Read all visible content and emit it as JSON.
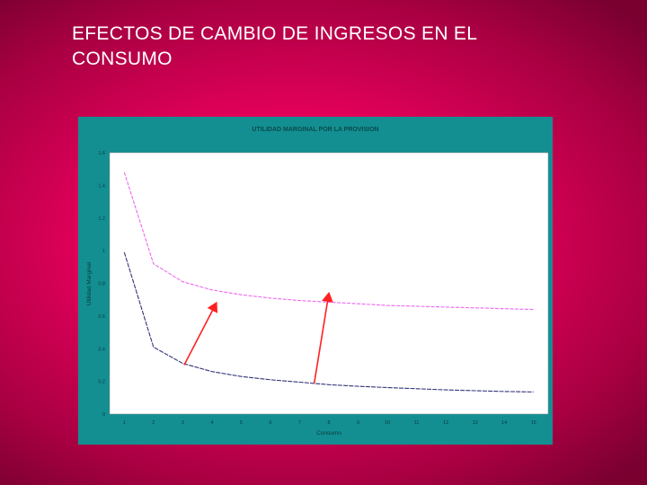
{
  "slide": {
    "title_line1": "EFECTOS DE CAMBIO DE INGRESOS EN EL",
    "title_line2": "CONSUMO"
  },
  "colors": {
    "panel": "#138f92",
    "plot_bg": "#ffffff",
    "series_upper": "#ee66ee",
    "series_lower": "#33337a",
    "arrows": "#ff2020"
  },
  "chart_data": {
    "type": "line",
    "title": "UTILIDAD MARGINAL POR LA PROVISION",
    "xlabel": "Consumo",
    "ylabel": "Utilidad Marginal",
    "ylim": [
      0,
      1.6
    ],
    "xlim": [
      0.5,
      15.5
    ],
    "y_ticks": [
      0,
      0.2,
      0.4,
      0.6,
      0.8,
      1,
      1.2,
      1.4,
      1.6
    ],
    "y_tick_labels": [
      "0",
      "0.2",
      "0.4",
      "0.6",
      "0.8",
      "1",
      "1.2",
      "1.4",
      "1.6"
    ],
    "x": [
      1,
      2,
      3,
      4,
      5,
      6,
      7,
      8,
      9,
      10,
      11,
      12,
      13,
      14,
      15
    ],
    "x_tick_labels": [
      "1",
      "2",
      "3",
      "4",
      "5",
      "6",
      "7",
      "8",
      "9",
      "10",
      "11",
      "12",
      "13",
      "14",
      "15"
    ],
    "grid": false,
    "legend": "none",
    "series": [
      {
        "values": [
          1.48,
          0.92,
          0.81,
          0.76,
          0.73,
          0.71,
          0.695,
          0.685,
          0.675,
          0.665,
          0.66,
          0.655,
          0.65,
          0.645,
          0.64
        ]
      },
      {
        "values": [
          0.99,
          0.41,
          0.31,
          0.26,
          0.23,
          0.21,
          0.195,
          0.18,
          0.17,
          0.162,
          0.155,
          0.148,
          0.143,
          0.138,
          0.135
        ]
      }
    ],
    "annotations": [
      {
        "type": "arrow",
        "from": [
          3.05,
          0.3
        ],
        "to": [
          4.15,
          0.68
        ]
      },
      {
        "type": "arrow",
        "from": [
          7.5,
          0.19
        ],
        "to": [
          8,
          0.74
        ]
      }
    ]
  }
}
